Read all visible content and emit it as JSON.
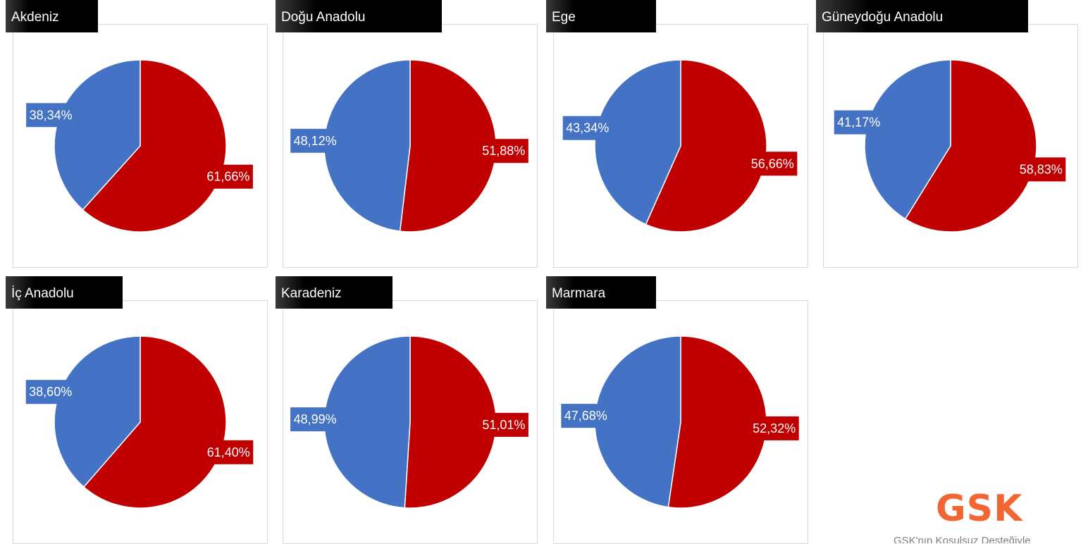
{
  "colors": {
    "share_a": "#c00000",
    "share_b": "#4472c4",
    "title_bar": "#000000",
    "brand": "#f36633"
  },
  "chart_data": [
    {
      "type": "pie",
      "title": "Akdeniz",
      "values": [
        61.66,
        38.34
      ],
      "labels": [
        "61,66%",
        "38,34%"
      ]
    },
    {
      "type": "pie",
      "title": "Doğu Anadolu",
      "values": [
        51.88,
        48.12
      ],
      "labels": [
        "51,88%",
        "48,12%"
      ]
    },
    {
      "type": "pie",
      "title": "Ege",
      "values": [
        56.66,
        43.34
      ],
      "labels": [
        "56,66%",
        "43,34%"
      ]
    },
    {
      "type": "pie",
      "title": "Güneydoğu Anadolu",
      "values": [
        58.83,
        41.17
      ],
      "labels": [
        "58,83%",
        "41,17%"
      ]
    },
    {
      "type": "pie",
      "title": "İç Anadolu",
      "values": [
        61.4,
        38.6
      ],
      "labels": [
        "61,40%",
        "38,60%"
      ]
    },
    {
      "type": "pie",
      "title": "Karadeniz",
      "values": [
        51.01,
        48.99
      ],
      "labels": [
        "51,01%",
        "48,99%"
      ]
    },
    {
      "type": "pie",
      "title": "Marmara",
      "values": [
        52.32,
        47.68
      ],
      "labels": [
        "52,32%",
        "47,68%"
      ]
    }
  ],
  "brand": {
    "logo_text": "GSK",
    "caption": "GSK'nın Koşulsuz Desteğiyle"
  }
}
